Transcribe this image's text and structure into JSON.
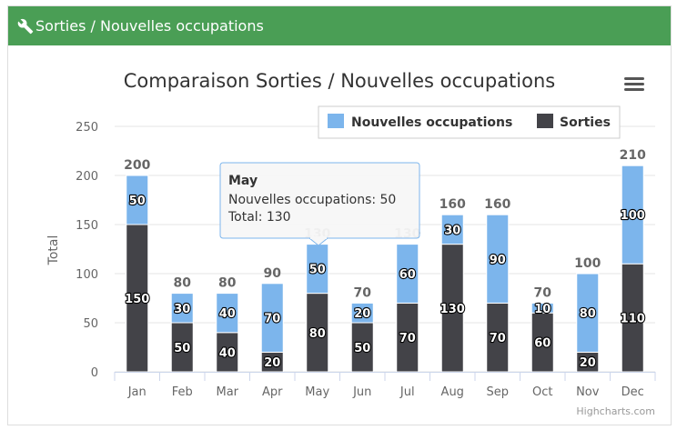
{
  "panel": {
    "header_icon": "wrench-icon",
    "header_title": "Sorties / Nouvelles occupations",
    "header_color": "#4a9e55"
  },
  "chart_data": {
    "type": "bar",
    "stacked": true,
    "title": "Comparaison Sorties / Nouvelles occupations",
    "ylabel": "Total",
    "xlabel": "",
    "ylim": [
      0,
      250
    ],
    "yticks": [
      0,
      50,
      100,
      150,
      200,
      250
    ],
    "grid": true,
    "legend_placement": "top-right",
    "categories": [
      "Jan",
      "Feb",
      "Mar",
      "Apr",
      "May",
      "Jun",
      "Jul",
      "Aug",
      "Sep",
      "Oct",
      "Nov",
      "Dec"
    ],
    "series": [
      {
        "name": "Nouvelles occupations",
        "color": "#7cb5ec",
        "values": [
          50,
          30,
          40,
          70,
          50,
          20,
          60,
          30,
          90,
          10,
          80,
          100
        ]
      },
      {
        "name": "Sorties",
        "color": "#434348",
        "values": [
          150,
          50,
          40,
          20,
          80,
          50,
          70,
          130,
          70,
          60,
          20,
          110
        ]
      }
    ],
    "totals": [
      200,
      80,
      80,
      90,
      130,
      70,
      130,
      160,
      160,
      70,
      100,
      210
    ],
    "tooltip": {
      "category": "May",
      "line1": "Nouvelles occupations: 50",
      "line2": "Total: 130"
    },
    "credits": "Highcharts.com",
    "menu_icon": "hamburger-menu-icon"
  }
}
